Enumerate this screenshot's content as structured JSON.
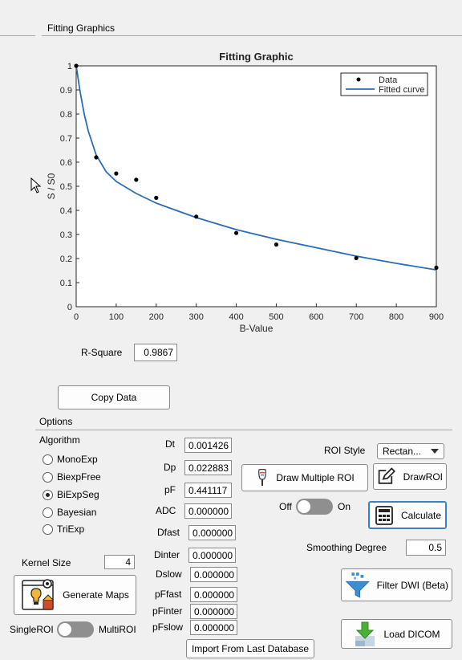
{
  "panel": {
    "title": "Fitting Graphics"
  },
  "chart_data": {
    "type": "scatter",
    "title": "Fitting Graphic",
    "xlabel": "B-Value",
    "ylabel": "S / S0",
    "xlim": [
      0,
      900
    ],
    "ylim": [
      0,
      1
    ],
    "x_ticks": [
      "0",
      "100",
      "200",
      "300",
      "400",
      "500",
      "600",
      "700",
      "800",
      "900"
    ],
    "y_ticks": [
      "0",
      "0.1",
      "0.2",
      "0.3",
      "0.4",
      "0.5",
      "0.6",
      "0.7",
      "0.8",
      "0.9",
      "1"
    ],
    "legend_position": "top-right",
    "grid": false,
    "series": [
      {
        "name": "Data",
        "kind": "points",
        "color": "#000000",
        "x": [
          0,
          50,
          100,
          150,
          200,
          300,
          400,
          500,
          700,
          900
        ],
        "y": [
          1.0,
          0.62,
          0.553,
          0.527,
          0.452,
          0.374,
          0.306,
          0.258,
          0.202,
          0.162
        ]
      },
      {
        "name": "Fitted curve",
        "kind": "line",
        "color": "#2a6db5",
        "x": [
          0,
          10,
          20,
          30,
          50,
          75,
          100,
          150,
          200,
          250,
          300,
          350,
          400,
          500,
          600,
          700,
          800,
          900
        ],
        "y": [
          1.0,
          0.89,
          0.8,
          0.73,
          0.63,
          0.56,
          0.52,
          0.47,
          0.43,
          0.4,
          0.37,
          0.345,
          0.32,
          0.28,
          0.245,
          0.21,
          0.18,
          0.153
        ]
      }
    ]
  },
  "rsquare": {
    "label": "R-Square",
    "value": "0.9867"
  },
  "copy_button": "Copy Data",
  "options": {
    "title": "Options",
    "algorithm_label": "Algorithm",
    "algorithms": [
      "MonoExp",
      "BiexpFree",
      "BiExpSeg",
      "Bayesian",
      "TriExp"
    ],
    "selected_algorithm": "BiExpSeg"
  },
  "params": [
    {
      "label": "Dt",
      "value": "0.001426"
    },
    {
      "label": "Dp",
      "value": "0.022883"
    },
    {
      "label": "pF",
      "value": "0.441117"
    },
    {
      "label": "ADC",
      "value": "0.000000"
    },
    {
      "label": "Dfast",
      "value": "0.000000"
    },
    {
      "label": "Dinter",
      "value": "0.000000"
    },
    {
      "label": "Dslow",
      "value": "0.000000"
    },
    {
      "label": "pFfast",
      "value": "0.000000"
    },
    {
      "label": "pFinter",
      "value": "0.000000"
    },
    {
      "label": "pFslow",
      "value": "0.000000"
    }
  ],
  "roi": {
    "style_label": "ROI Style",
    "style_value": "Rectan...",
    "draw_multiple": "Draw Multiple ROI",
    "draw_roi": "DrawROI",
    "toggle_off": "Off",
    "toggle_on": "On"
  },
  "calculate": "Calculate",
  "smoothing": {
    "label": "Smoothing Degree",
    "value": "0.5"
  },
  "filter_button": "Filter DWI (Beta)",
  "kernel": {
    "label": "Kernel Size",
    "value": "4"
  },
  "generate_maps": "Generate Maps",
  "roi_mode": {
    "single": "SingleROI",
    "multi": "MultiROI"
  },
  "load_dicom": "Load DICOM",
  "import_button": "Import From Last Database"
}
